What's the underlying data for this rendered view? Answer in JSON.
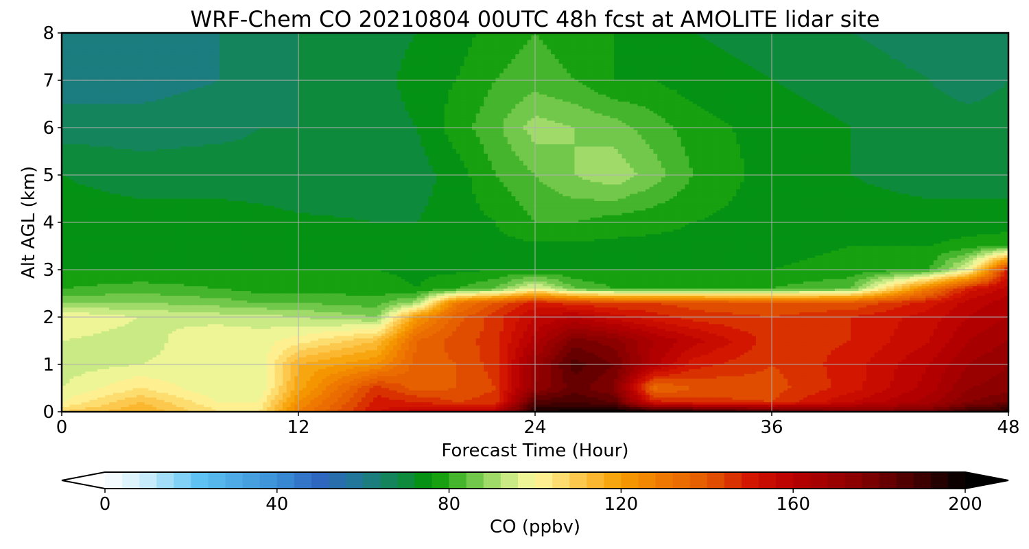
{
  "chart_data": {
    "type": "heatmap",
    "subtype": "filled-contour",
    "title": "WRF-Chem CO  20210804 00UTC 48h fcst at AMOLITE lidar site",
    "xlabel": "Forecast Time (Hour)",
    "ylabel": "Alt AGL (km)",
    "xlim": [
      0,
      48
    ],
    "ylim": [
      0,
      8
    ],
    "xticks": [
      0,
      12,
      24,
      36,
      48
    ],
    "yticks": [
      0,
      1,
      2,
      3,
      4,
      5,
      6,
      7,
      8
    ],
    "grid": true,
    "colorbar": {
      "label": "CO  (ppbv)",
      "orientation": "horizontal",
      "placement": "bottom",
      "range": [
        0,
        200
      ],
      "ticks": [
        0,
        40,
        80,
        120,
        160,
        200
      ],
      "extend": "both",
      "under_color": "#ffffff",
      "over_color": "#000000",
      "stops": [
        {
          "value": 0,
          "color": "#ffffff"
        },
        {
          "value": 10,
          "color": "#c6ecfb"
        },
        {
          "value": 22,
          "color": "#5ec2f2"
        },
        {
          "value": 40,
          "color": "#3a8fd6"
        },
        {
          "value": 50,
          "color": "#2f66c0"
        },
        {
          "value": 60,
          "color": "#1e7a8f"
        },
        {
          "value": 70,
          "color": "#0e8a3c"
        },
        {
          "value": 76,
          "color": "#009600"
        },
        {
          "value": 84,
          "color": "#5bbf3a"
        },
        {
          "value": 92,
          "color": "#b7e47a"
        },
        {
          "value": 100,
          "color": "#fffaa0"
        },
        {
          "value": 110,
          "color": "#fcc94e"
        },
        {
          "value": 120,
          "color": "#f79d00"
        },
        {
          "value": 130,
          "color": "#ef7800"
        },
        {
          "value": 140,
          "color": "#e45a00"
        },
        {
          "value": 150,
          "color": "#d21600"
        },
        {
          "value": 160,
          "color": "#b80000"
        },
        {
          "value": 175,
          "color": "#8a0000"
        },
        {
          "value": 190,
          "color": "#3c0000"
        },
        {
          "value": 200,
          "color": "#000000"
        }
      ]
    },
    "time_hours": [
      0,
      4,
      8,
      10,
      12,
      16,
      18,
      20,
      22,
      24,
      26,
      28,
      30,
      32,
      36,
      40,
      44,
      46,
      48
    ],
    "altitude_km": [
      0,
      0.2,
      0.5,
      1,
      1.5,
      2,
      2.3,
      2.6,
      3,
      3.5,
      4,
      5,
      6,
      7,
      8
    ],
    "co_ppbv": [
      [
        108,
        116,
        104,
        104,
        128,
        152,
        158,
        160,
        162,
        196,
        198,
        200,
        196,
        194,
        186,
        176,
        180,
        190,
        194
      ],
      [
        100,
        112,
        100,
        100,
        124,
        150,
        148,
        144,
        146,
        186,
        188,
        184,
        150,
        146,
        144,
        156,
        166,
        176,
        180
      ],
      [
        96,
        104,
        96,
        96,
        118,
        146,
        138,
        140,
        144,
        172,
        182,
        176,
        134,
        140,
        142,
        150,
        162,
        172,
        174
      ],
      [
        94,
        96,
        98,
        96,
        116,
        124,
        138,
        140,
        146,
        170,
        186,
        180,
        162,
        150,
        144,
        150,
        160,
        168,
        172
      ],
      [
        96,
        94,
        100,
        98,
        102,
        112,
        136,
        142,
        146,
        162,
        178,
        174,
        164,
        158,
        146,
        148,
        156,
        164,
        168
      ],
      [
        100,
        96,
        94,
        94,
        92,
        88,
        122,
        138,
        146,
        156,
        160,
        154,
        150,
        146,
        144,
        148,
        154,
        160,
        164
      ],
      [
        88,
        88,
        86,
        84,
        84,
        82,
        90,
        130,
        140,
        150,
        146,
        144,
        144,
        142,
        140,
        140,
        150,
        158,
        162
      ],
      [
        80,
        82,
        80,
        78,
        78,
        78,
        76,
        80,
        84,
        98,
        84,
        80,
        80,
        80,
        80,
        84,
        130,
        150,
        158
      ],
      [
        76,
        76,
        76,
        76,
        76,
        76,
        75,
        75,
        76,
        76,
        76,
        76,
        76,
        76,
        76,
        77,
        80,
        98,
        150
      ],
      [
        75,
        75,
        75,
        75,
        75,
        75,
        75,
        75,
        75,
        75,
        75,
        75,
        75,
        75,
        75,
        76,
        76,
        78,
        80
      ],
      [
        74,
        74,
        74,
        74,
        73,
        72,
        72,
        74,
        76,
        80,
        80,
        78,
        77,
        76,
        74,
        73,
        73,
        73,
        73
      ],
      [
        72,
        70,
        70,
        69,
        68,
        68,
        70,
        74,
        80,
        84,
        88,
        91,
        86,
        80,
        74,
        72,
        71,
        71,
        71
      ],
      [
        66,
        66,
        67,
        68,
        68,
        70,
        72,
        78,
        83,
        90,
        88,
        86,
        82,
        78,
        74,
        72,
        70,
        70,
        70
      ],
      [
        62,
        62,
        64,
        66,
        68,
        70,
        74,
        76,
        80,
        82,
        80,
        76,
        76,
        74,
        72,
        70,
        68,
        66,
        68
      ],
      [
        64,
        62,
        64,
        66,
        68,
        70,
        72,
        74,
        78,
        80,
        78,
        76,
        74,
        72,
        70,
        68,
        66,
        66,
        68
      ]
    ]
  }
}
